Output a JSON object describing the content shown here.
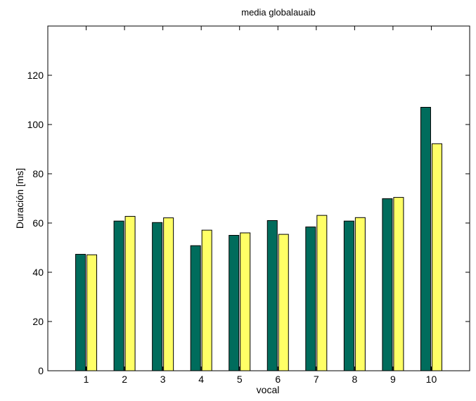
{
  "chart_data": {
    "type": "bar",
    "title": "media globalauaib",
    "xlabel": "vocal",
    "ylabel": "Duración [ms]",
    "categories": [
      "1",
      "2",
      "3",
      "4",
      "5",
      "6",
      "7",
      "8",
      "9",
      "10"
    ],
    "ylim": [
      0,
      140
    ],
    "yticks": [
      "0",
      "20",
      "40",
      "60",
      "80",
      "100",
      "120"
    ],
    "grid": false,
    "legend": "none",
    "series": [
      {
        "color": "#006c5c",
        "values": [
          47.3,
          60.8,
          60.2,
          50.8,
          55.0,
          61.0,
          58.4,
          60.8,
          69.9,
          107.0
        ]
      },
      {
        "color": "#ffff66",
        "values": [
          47.1,
          62.7,
          62.1,
          57.1,
          56.0,
          55.4,
          63.1,
          62.2,
          70.4,
          92.2
        ]
      }
    ]
  }
}
